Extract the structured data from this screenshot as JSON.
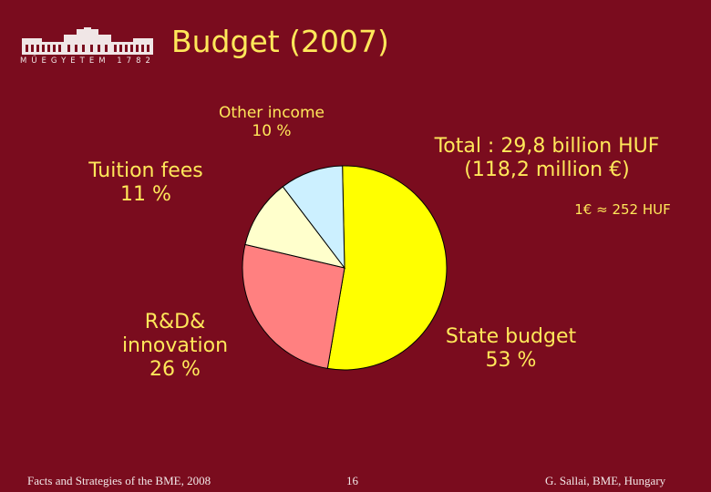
{
  "slide": {
    "logo_text": "MŰEGYETEM 1782",
    "title": "Budget (2007)",
    "total_line1": "Total :   29,8 billion HUF",
    "total_line2": "(118,2 million €)",
    "exchange_rate": "1€ ≈ 252 HUF"
  },
  "footer": {
    "left": "Facts and Strategies of the BME, 2008",
    "page": "16",
    "right": "G. Sallai, BME, Hungary"
  },
  "colors": {
    "background": "#7a0c1e",
    "text_accent": "#ffe85a"
  },
  "chart_data": {
    "type": "pie",
    "title": "Budget (2007)",
    "slices": [
      {
        "label_lines": [
          "State budget",
          "53 %"
        ],
        "value": 53,
        "color": "#ffff00"
      },
      {
        "label_lines": [
          "R&D&",
          "innovation",
          "26 %"
        ],
        "value": 26,
        "color": "#ff8080"
      },
      {
        "label_lines": [
          "Tuition fees",
          "11 %"
        ],
        "value": 11,
        "color": "#ffffcc"
      },
      {
        "label_lines": [
          "Other income",
          "10 %"
        ],
        "value": 10,
        "color": "#ccf0ff"
      }
    ]
  }
}
